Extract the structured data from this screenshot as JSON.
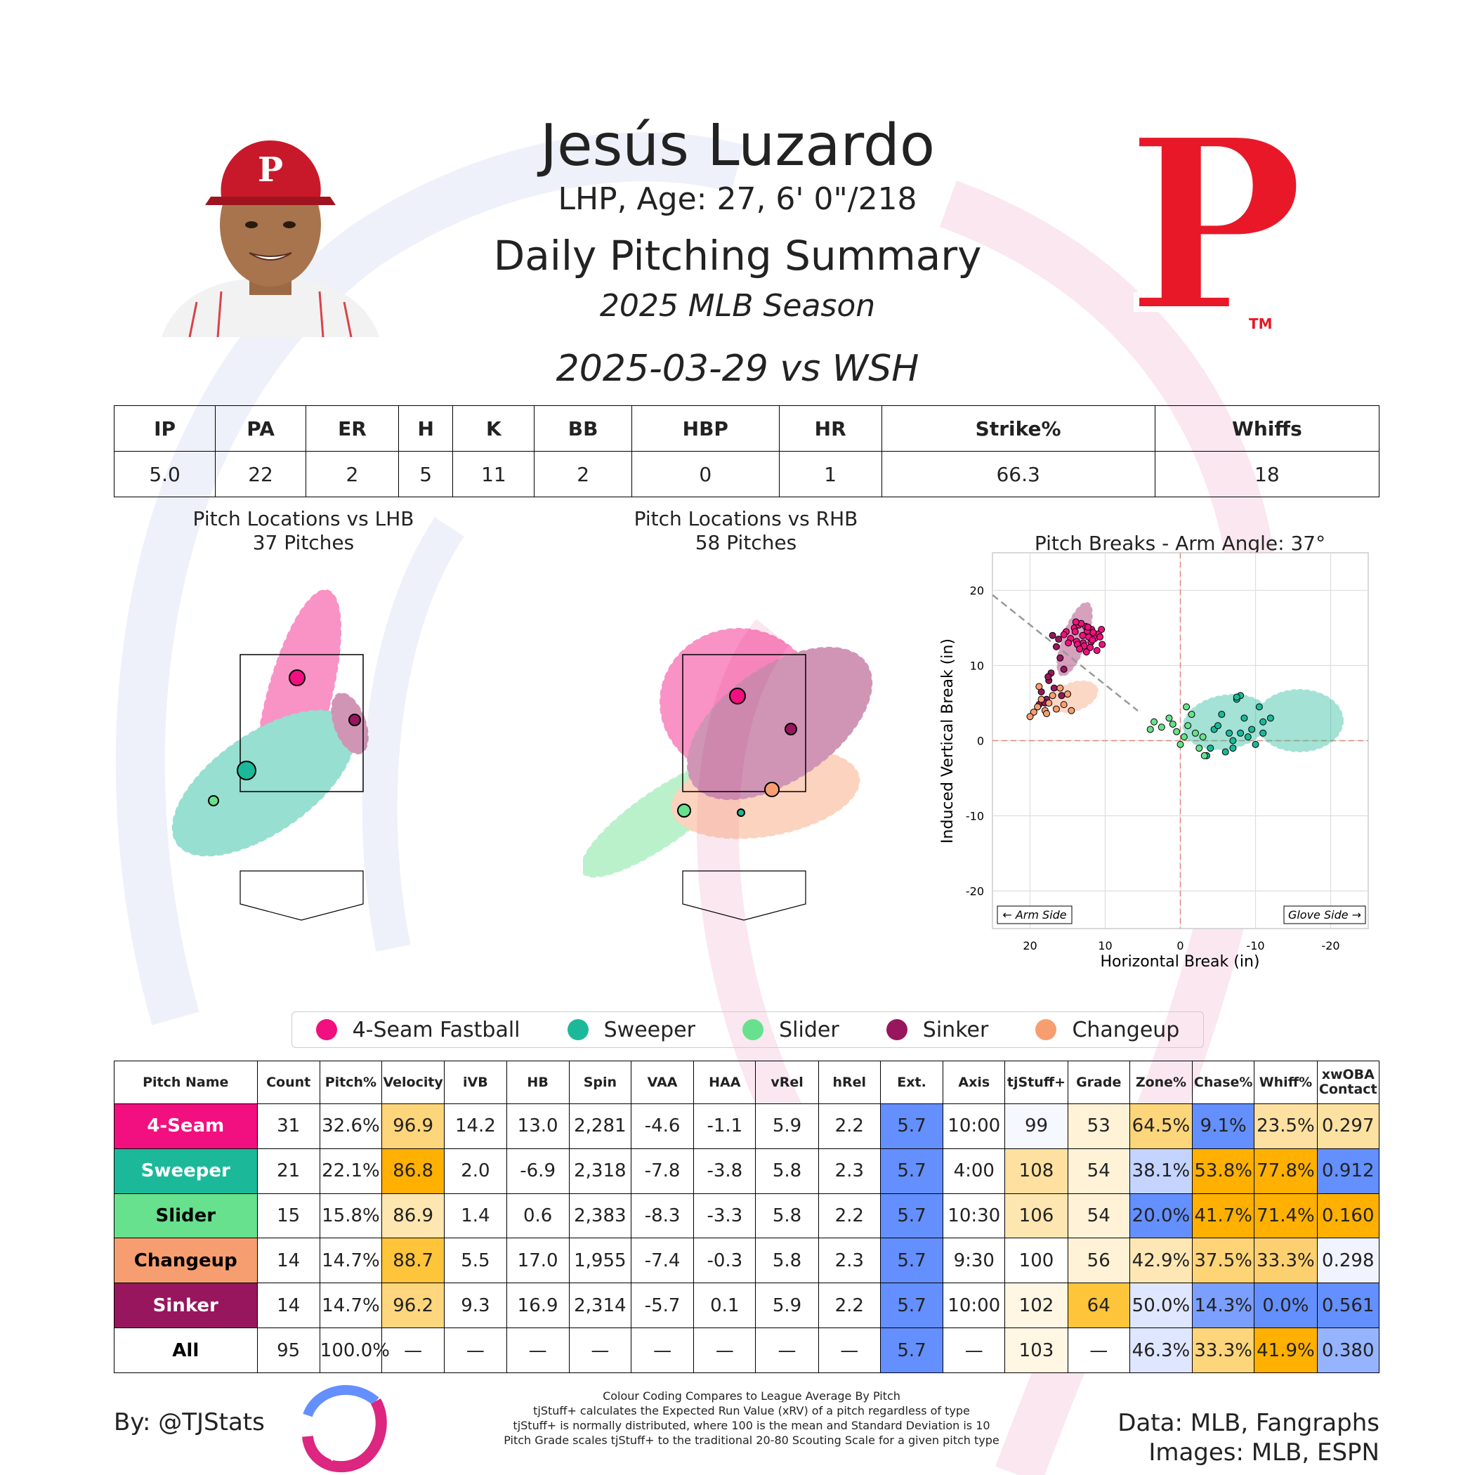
{
  "header": {
    "name": "Jesús Luzardo",
    "bio": "LHP, Age: 27, 6' 0\"/218",
    "summary_title": "Daily Pitching Summary",
    "season": "2025 MLB Season",
    "game": "2025-03-29 vs WSH",
    "logo_letter": "P",
    "logo_tm": "TM"
  },
  "colors": {
    "four_seam": "#f20f7f",
    "sweeper": "#1bb999",
    "slider": "#67e18d",
    "sinker": "#98165d",
    "changeup": "#f79e70",
    "phillies_red": "#e81828",
    "blue_high": "#648fff",
    "orange_high": "#ffb000"
  },
  "stat_line": {
    "headers": [
      "IP",
      "PA",
      "ER",
      "H",
      "K",
      "BB",
      "HBP",
      "HR",
      "Strike%",
      "Whiffs"
    ],
    "values": [
      "5.0",
      "22",
      "2",
      "5",
      "11",
      "2",
      "0",
      "1",
      "66.3",
      "18"
    ]
  },
  "panels": {
    "lhb_title": "Pitch Locations vs LHB",
    "lhb_count": "37 Pitches",
    "rhb_title": "Pitch Locations vs RHB",
    "rhb_count": "58 Pitches",
    "break_title": "Pitch Breaks - Arm Angle: 37°",
    "arm_side": "← Arm Side",
    "glove_side": "Glove Side →"
  },
  "legend": [
    {
      "name": "4-Seam Fastball",
      "color": "#f20f7f"
    },
    {
      "name": "Sweeper",
      "color": "#1bb999"
    },
    {
      "name": "Slider",
      "color": "#67e18d"
    },
    {
      "name": "Sinker",
      "color": "#98165d"
    },
    {
      "name": "Changeup",
      "color": "#f79e70"
    }
  ],
  "chart_data": [
    {
      "type": "scatter",
      "title": "Pitch Breaks - Arm Angle: 37°",
      "xlabel": "Horizontal Break (in)",
      "ylabel": "Induced Vertical Break (in)",
      "xlim": [
        25,
        -25
      ],
      "ylim": [
        -25,
        25
      ],
      "xticks": [
        "20",
        "10",
        "0",
        "-10",
        "-20"
      ],
      "yticks": [
        "20",
        "10",
        "0",
        "-10",
        "-20"
      ],
      "grid": true,
      "series": [
        {
          "name": "4-Seam Fastball",
          "x": [
            15.2,
            14.1,
            13.5,
            12.6,
            11.8,
            10.9,
            13.0,
            12.2,
            11.4,
            14.6,
            13.8,
            12.9,
            11.9,
            10.7,
            15.5,
            14.0,
            13.2,
            12.4,
            11.6,
            10.5,
            13.7,
            12.8,
            12.0,
            14.9,
            13.4,
            12.5,
            11.1,
            10.4,
            13.9,
            12.3,
            11.7
          ],
          "y": [
            14.5,
            15.0,
            15.4,
            15.2,
            14.8,
            14.2,
            14.0,
            13.8,
            13.6,
            13.6,
            13.2,
            13.0,
            13.1,
            13.8,
            14.1,
            14.5,
            15.6,
            14.6,
            14.4,
            14.8,
            12.8,
            12.6,
            12.4,
            13.0,
            12.2,
            11.8,
            12.0,
            12.8,
            15.8,
            15.1,
            13.4
          ]
        },
        {
          "name": "Sweeper",
          "x": [
            -4.5,
            -5.5,
            -6.5,
            -7.0,
            -7.5,
            -8.0,
            -8.5,
            -9.5,
            -10.5,
            -11.0,
            -12.0,
            -3.5,
            -4.0,
            -5.0,
            -6.0,
            -7.0,
            -8.0,
            -9.0,
            -10.0,
            -11.0,
            -7.5
          ],
          "y": [
            1.5,
            3.5,
            1.0,
            0.0,
            5.5,
            6.0,
            3.0,
            1.5,
            4.5,
            2.5,
            3.0,
            -2.0,
            -1.0,
            2.0,
            -1.5,
            -1.0,
            1.0,
            0.5,
            -0.5,
            1.0,
            5.8
          ]
        },
        {
          "name": "Slider",
          "x": [
            -1.0,
            -2.0,
            -3.0,
            1.5,
            2.5,
            3.5,
            4.0,
            0.0,
            -0.5,
            -1.5,
            -2.5,
            0.5,
            1.0,
            -0.8,
            -3.2
          ],
          "y": [
            2.0,
            1.0,
            0.5,
            3.0,
            1.8,
            2.5,
            1.5,
            -0.5,
            0.5,
            3.5,
            -1.0,
            1.2,
            2.2,
            4.5,
            -2.0
          ]
        },
        {
          "name": "Sinker",
          "x": [
            17.0,
            16.5,
            16.0,
            15.5,
            17.5,
            18.5,
            17.8,
            16.8,
            15.8,
            17.2,
            18.0,
            16.2,
            17.6,
            18.8
          ],
          "y": [
            14.0,
            12.5,
            11.0,
            9.5,
            8.0,
            6.5,
            5.5,
            7.0,
            6.0,
            9.0,
            5.0,
            13.5,
            8.5,
            4.8
          ]
        },
        {
          "name": "Changeup",
          "x": [
            18.5,
            19.0,
            18.0,
            17.5,
            16.5,
            15.5,
            14.5,
            17.0,
            18.8,
            19.5,
            16.0,
            15.0,
            20.0,
            17.8
          ],
          "y": [
            5.5,
            4.5,
            4.0,
            5.0,
            4.2,
            4.8,
            4.0,
            6.0,
            7.2,
            3.8,
            7.0,
            6.2,
            3.2,
            3.6
          ]
        }
      ]
    }
  ],
  "table": {
    "headers": [
      "Pitch Name",
      "Count",
      "Pitch%",
      "Velocity",
      "iVB",
      "HB",
      "Spin",
      "VAA",
      "HAA",
      "vRel",
      "hRel",
      "Ext.",
      "Axis",
      "tjStuff+",
      "Grade",
      "Zone%",
      "Chase%",
      "Whiff%",
      "xwOBA Contact"
    ],
    "rows": [
      {
        "name": "4-Seam",
        "color": "#f20f7f",
        "text": "#ffffff",
        "cells": [
          "31",
          "32.6%",
          "96.9",
          "14.2",
          "13.0",
          "2,281",
          "-4.6",
          "-1.1",
          "5.9",
          "2.2",
          "5.7",
          "10:00",
          "99",
          "53",
          "64.5%",
          "9.1%",
          "23.5%",
          "0.297"
        ]
      },
      {
        "name": "Sweeper",
        "color": "#1bb999",
        "text": "#ffffff",
        "cells": [
          "21",
          "22.1%",
          "86.8",
          "2.0",
          "-6.9",
          "2,318",
          "-7.8",
          "-3.8",
          "5.8",
          "2.3",
          "5.7",
          "4:00",
          "108",
          "54",
          "38.1%",
          "53.8%",
          "77.8%",
          "0.912"
        ]
      },
      {
        "name": "Slider",
        "color": "#67e18d",
        "text": "#000000",
        "cells": [
          "15",
          "15.8%",
          "86.9",
          "1.4",
          "0.6",
          "2,383",
          "-8.3",
          "-3.3",
          "5.8",
          "2.2",
          "5.7",
          "10:30",
          "106",
          "54",
          "20.0%",
          "41.7%",
          "71.4%",
          "0.160"
        ]
      },
      {
        "name": "Changeup",
        "color": "#f79e70",
        "text": "#000000",
        "cells": [
          "14",
          "14.7%",
          "88.7",
          "5.5",
          "17.0",
          "1,955",
          "-7.4",
          "-0.3",
          "5.8",
          "2.3",
          "5.7",
          "9:30",
          "100",
          "56",
          "42.9%",
          "37.5%",
          "33.3%",
          "0.298"
        ]
      },
      {
        "name": "Sinker",
        "color": "#98165d",
        "text": "#ffffff",
        "cells": [
          "14",
          "14.7%",
          "96.2",
          "9.3",
          "16.9",
          "2,314",
          "-5.7",
          "0.1",
          "5.9",
          "2.2",
          "5.7",
          "10:00",
          "102",
          "64",
          "50.0%",
          "14.3%",
          "0.0%",
          "0.561"
        ]
      },
      {
        "name": "All",
        "color": "#ffffff",
        "text": "#000000",
        "cells": [
          "95",
          "100.0%",
          "—",
          "—",
          "—",
          "—",
          "—",
          "—",
          "—",
          "—",
          "5.7",
          "—",
          "103",
          "—",
          "46.3%",
          "33.3%",
          "41.9%",
          "0.380"
        ]
      }
    ],
    "cell_colors": [
      [
        "#ffffff",
        "#ffffff",
        "#fdd57a",
        "#ffffff",
        "#ffffff",
        "#ffffff",
        "#ffffff",
        "#ffffff",
        "#ffffff",
        "#ffffff",
        "#648fff",
        "#ffffff",
        "#f6f8ff",
        "#fff2d6",
        "#fdd57a",
        "#648fff",
        "#fee1a0",
        "#fde1a1"
      ],
      [
        "#ffffff",
        "#ffffff",
        "#ffb000",
        "#ffffff",
        "#ffffff",
        "#ffffff",
        "#ffffff",
        "#ffffff",
        "#ffffff",
        "#ffffff",
        "#648fff",
        "#ffffff",
        "#fee1a0",
        "#fff2d6",
        "#c4d4ff",
        "#ffb000",
        "#ffb000",
        "#648fff"
      ],
      [
        "#ffffff",
        "#ffffff",
        "#fee6b0",
        "#ffffff",
        "#ffffff",
        "#ffffff",
        "#ffffff",
        "#ffffff",
        "#ffffff",
        "#ffffff",
        "#648fff",
        "#ffffff",
        "#fee6b0",
        "#fff2d6",
        "#648fff",
        "#ffb000",
        "#ffb000",
        "#ffb000"
      ],
      [
        "#ffffff",
        "#ffffff",
        "#fec43a",
        "#ffffff",
        "#ffffff",
        "#ffffff",
        "#ffffff",
        "#ffffff",
        "#ffffff",
        "#ffffff",
        "#648fff",
        "#ffffff",
        "#ffffff",
        "#fff2d6",
        "#ffe7b5",
        "#ffd477",
        "#fdd06f",
        "#f1f4ff"
      ],
      [
        "#ffffff",
        "#ffffff",
        "#fed67d",
        "#ffffff",
        "#ffffff",
        "#ffffff",
        "#ffffff",
        "#ffffff",
        "#ffffff",
        "#ffffff",
        "#648fff",
        "#ffffff",
        "#fff6e4",
        "#fec43a",
        "#dfe6ff",
        "#7b9fff",
        "#648fff",
        "#648fff"
      ],
      [
        "#ffffff",
        "#ffffff",
        "#ffffff",
        "#ffffff",
        "#ffffff",
        "#ffffff",
        "#ffffff",
        "#ffffff",
        "#ffffff",
        "#ffffff",
        "#648fff",
        "#ffffff",
        "#fff6e4",
        "#ffffff",
        "#dfe6ff",
        "#fdd57a",
        "#ffb000",
        "#96b3ff"
      ]
    ]
  },
  "footer": {
    "by": "By: @TJStats",
    "data": "Data: MLB, Fangraphs",
    "images": "Images: MLB, ESPN",
    "notes": [
      "Colour Coding Compares to League Average By Pitch",
      "tjStuff+ calculates the Expected Run Value (xRV) of a pitch regardless of type",
      "tjStuff+ is normally distributed, where 100 is the mean and Standard Deviation is 10",
      "Pitch Grade scales tjStuff+ to the traditional 20-80 Scouting Scale for a given pitch type"
    ]
  }
}
